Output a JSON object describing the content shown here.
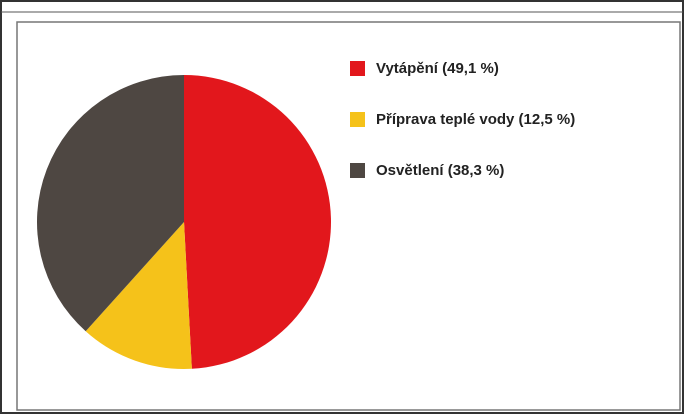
{
  "chart_data": {
    "type": "pie",
    "categories": [
      "Vytápění (49,1 %)",
      "Příprava teplé vody (12,5 %)",
      "Osvětlení (38,3 %)"
    ],
    "values": [
      49.1,
      12.5,
      38.3
    ],
    "colors": [
      "#e2171c",
      "#f5c21a",
      "#4e4742"
    ]
  }
}
